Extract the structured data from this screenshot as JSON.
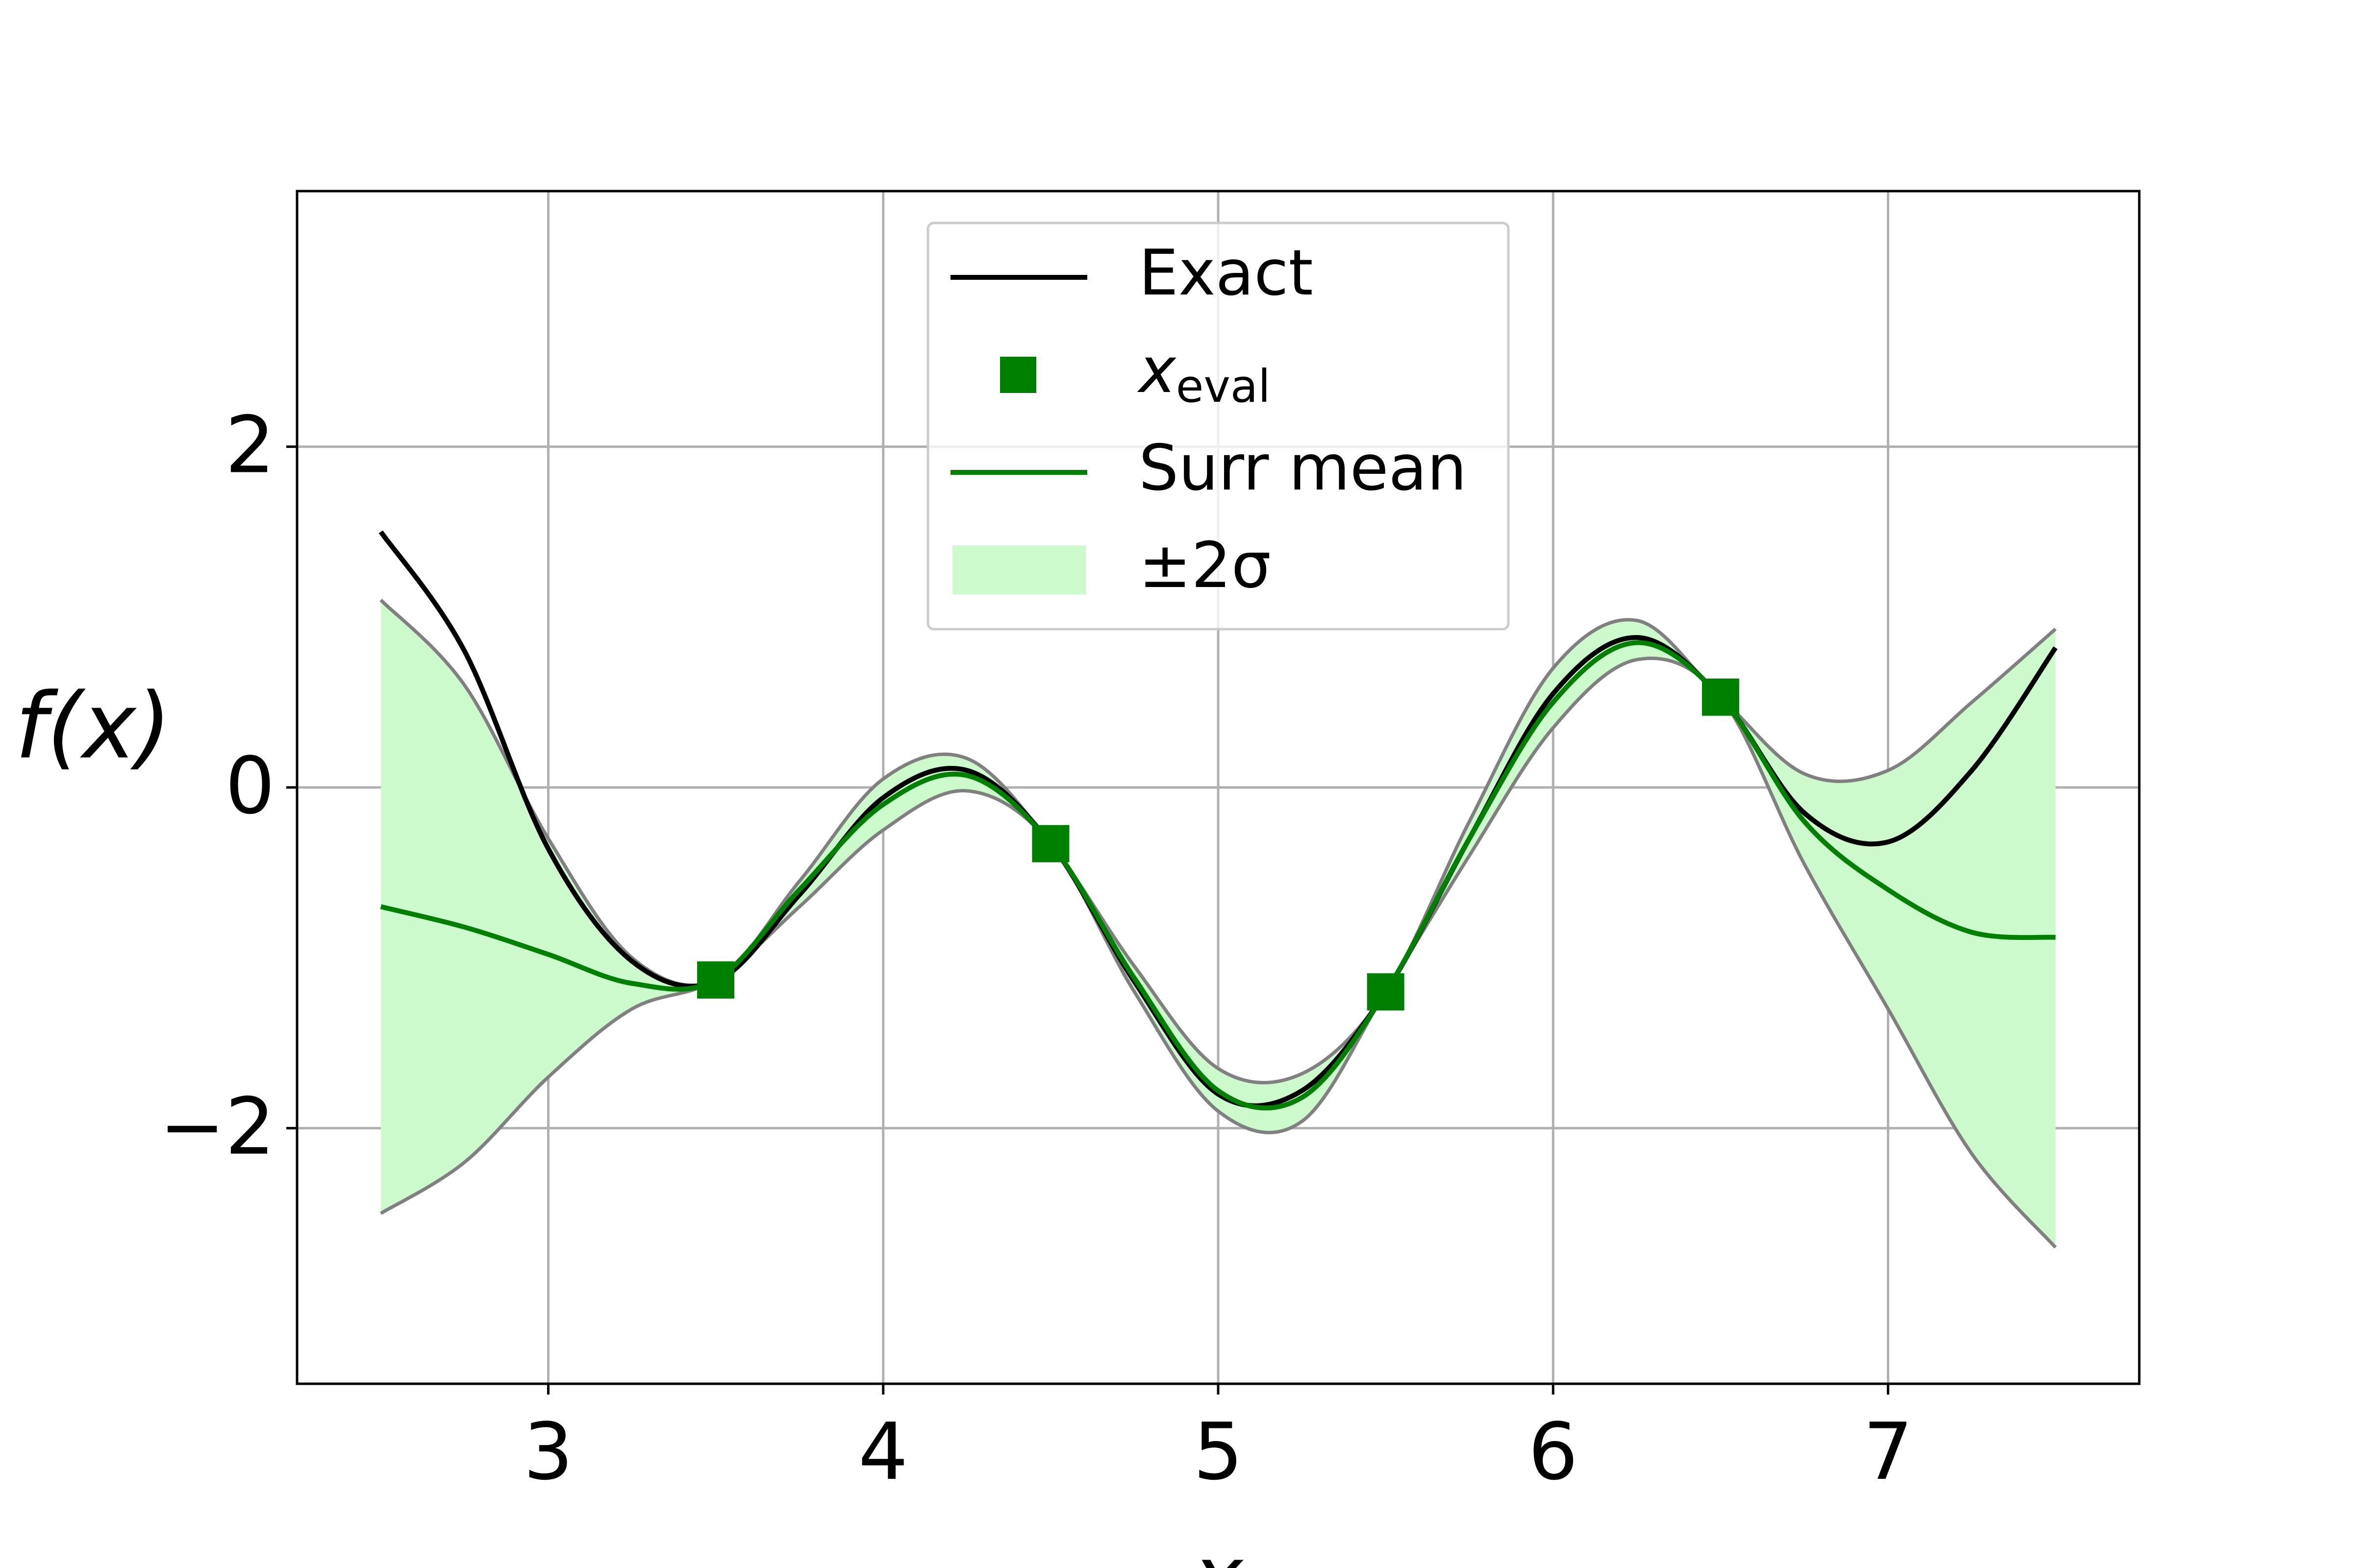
{
  "chart_data": {
    "type": "line",
    "xlabel": "x",
    "ylabel": "f(x)",
    "xlim": [
      2.25,
      7.75
    ],
    "ylim": [
      -3.5,
      3.5
    ],
    "xticks": [
      3,
      4,
      5,
      6,
      7
    ],
    "yticks": [
      {
        "value": -2,
        "label": "−2"
      },
      0,
      2
    ],
    "grid": true,
    "legend": "upper center",
    "x": [
      2.5,
      2.75,
      3.0,
      3.25,
      3.5,
      3.75,
      4.0,
      4.25,
      4.5,
      4.75,
      5.0,
      5.25,
      5.5,
      5.75,
      6.0,
      6.25,
      6.5,
      6.75,
      7.0,
      7.25,
      7.5
    ],
    "series": [
      {
        "name": "Exact",
        "kind": "line",
        "color": "#000000",
        "values": [
          1.5,
          0.8,
          -0.36,
          -1.02,
          -1.14,
          -0.63,
          -0.06,
          0.1,
          -0.33,
          -1.14,
          -1.8,
          -1.78,
          -1.2,
          -0.3,
          0.55,
          0.88,
          0.53,
          -0.15,
          -0.32,
          0.1,
          0.82
        ]
      },
      {
        "name": "x",
        "subscript": "eval",
        "kind": "scatter",
        "color": "#008000",
        "x": [
          3.5,
          4.5,
          5.5,
          6.5
        ],
        "values": [
          -1.13,
          -0.33,
          -1.2,
          0.53
        ]
      },
      {
        "name": "Surr mean",
        "kind": "line",
        "color": "#008000",
        "values": [
          -0.7,
          -0.82,
          -0.98,
          -1.15,
          -1.13,
          -0.6,
          -0.1,
          0.07,
          -0.33,
          -1.12,
          -1.78,
          -1.82,
          -1.2,
          -0.3,
          0.5,
          0.85,
          0.53,
          -0.2,
          -0.6,
          -0.85,
          -0.88
        ]
      },
      {
        "name": "±2σ",
        "kind": "band",
        "color": "#ccfacc",
        "edge_color": "#808080",
        "lower": [
          -2.5,
          -2.2,
          -1.7,
          -1.3,
          -1.13,
          -0.7,
          -0.25,
          -0.02,
          -0.33,
          -1.2,
          -1.9,
          -1.96,
          -1.2,
          -0.4,
          0.35,
          0.75,
          0.53,
          -0.45,
          -1.3,
          -2.15,
          -2.7
        ],
        "upper": [
          1.1,
          0.6,
          -0.3,
          -1.0,
          -1.13,
          -0.55,
          0.05,
          0.17,
          -0.33,
          -1.05,
          -1.65,
          -1.68,
          -1.2,
          -0.2,
          0.7,
          0.98,
          0.53,
          0.08,
          0.1,
          0.5,
          0.93
        ]
      }
    ]
  }
}
